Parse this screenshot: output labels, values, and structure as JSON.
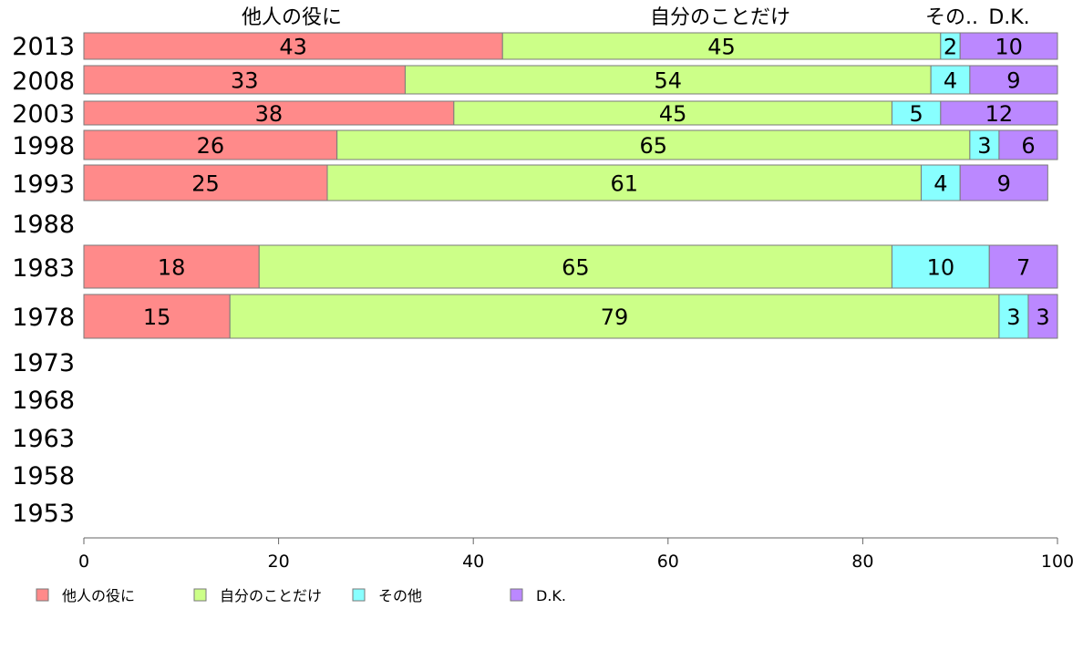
{
  "chart_data": {
    "type": "bar",
    "orientation": "horizontal",
    "stacked": true,
    "categories": [
      "2013",
      "2008",
      "2003",
      "1998",
      "1993",
      "1988",
      "1983",
      "1978",
      "1973",
      "1968",
      "1963",
      "1958",
      "1953"
    ],
    "series": [
      {
        "name": "他人の役に",
        "header": "他人の役に",
        "color": "#ff8a8a",
        "values": [
          43,
          33,
          38,
          26,
          25,
          null,
          18,
          15,
          null,
          null,
          null,
          null,
          null
        ]
      },
      {
        "name": "自分のことだけ",
        "header": "自分のことだけ",
        "color": "#ccff88",
        "values": [
          45,
          54,
          45,
          65,
          61,
          null,
          65,
          79,
          null,
          null,
          null,
          null,
          null
        ]
      },
      {
        "name": "その他",
        "header": "その..",
        "color": "#88ffff",
        "values": [
          2,
          4,
          5,
          3,
          4,
          null,
          10,
          3,
          null,
          null,
          null,
          null,
          null
        ]
      },
      {
        "name": "D.K.",
        "header": "D.K.",
        "color": "#bb88ff",
        "values": [
          10,
          9,
          12,
          6,
          9,
          null,
          7,
          3,
          null,
          null,
          null,
          null,
          null
        ]
      }
    ],
    "xlim": [
      0,
      100
    ],
    "xticks": [
      0,
      20,
      40,
      60,
      80,
      100
    ],
    "legend_position": "bottom",
    "grid": false
  }
}
